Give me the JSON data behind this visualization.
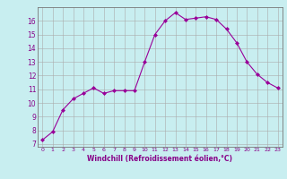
{
  "x": [
    0,
    1,
    2,
    3,
    4,
    5,
    6,
    7,
    8,
    9,
    10,
    11,
    12,
    13,
    14,
    15,
    16,
    17,
    18,
    19,
    20,
    21,
    22,
    23
  ],
  "y": [
    7.3,
    7.9,
    9.5,
    10.3,
    10.7,
    11.1,
    10.7,
    10.9,
    10.9,
    10.9,
    13.0,
    15.0,
    16.0,
    16.6,
    16.1,
    16.2,
    16.3,
    16.1,
    15.4,
    14.4,
    13.0,
    12.1,
    11.5,
    11.1
  ],
  "line_color": "#990099",
  "marker": "D",
  "marker_size": 2,
  "bg_color": "#c8eef0",
  "grid_color": "#aaaaaa",
  "xlabel": "Windchill (Refroidissement éolien,°C)",
  "xlabel_color": "#880088",
  "tick_color": "#880088",
  "ylabel_ticks": [
    7,
    8,
    9,
    10,
    11,
    12,
    13,
    14,
    15,
    16
  ],
  "xlim": [
    -0.5,
    23.5
  ],
  "ylim": [
    6.8,
    17.0
  ],
  "title": ""
}
